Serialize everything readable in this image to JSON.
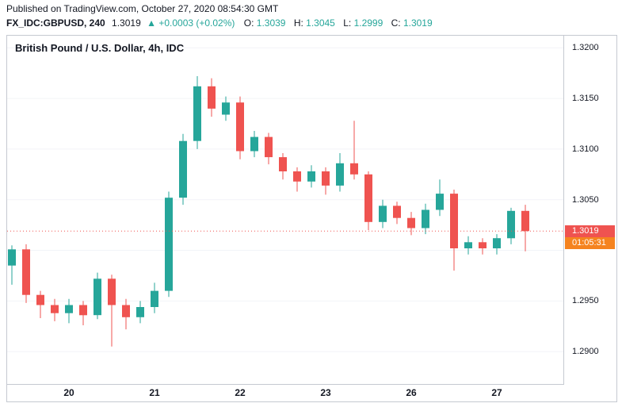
{
  "header": {
    "published": "Published on TradingView.com, October 27, 2020 08:54:30 GMT",
    "symbol": "FX_IDC:GBPUSD, 240",
    "last_price": "1.3019",
    "change_arrow": "▲",
    "change": "+0.0003 (+0.02%)",
    "ohlc": [
      {
        "label": "O:",
        "value": "1.3039"
      },
      {
        "label": "H:",
        "value": "1.3045"
      },
      {
        "label": "L:",
        "value": "1.2999"
      },
      {
        "label": "C:",
        "value": "1.3019"
      }
    ]
  },
  "chart": {
    "title": "British Pound / U.S. Dollar, 4h, IDC",
    "price_tag": "1.3019",
    "countdown_tag": "01:05:31"
  },
  "colors": {
    "up": "#26a69a",
    "down": "#ef5350",
    "change_text": "#26a69a",
    "ohlc_value_text": "#26a69a",
    "price_line": "#ef5350",
    "price_tag_bg": "#ef5350",
    "countdown_bg": "#f5831f",
    "grid": "#f2f4f8",
    "border": "#c5c9d1",
    "text": "#131722"
  },
  "chart_data": {
    "type": "candlestick",
    "title": "British Pound / U.S. Dollar, 4h, IDC",
    "symbol": "FX_IDC:GBPUSD",
    "interval": "240",
    "ylim": [
      1.2868,
      1.3212
    ],
    "y_grid": [
      1.32,
      1.315,
      1.31,
      1.305,
      1.3,
      1.295,
      1.29
    ],
    "y_ticks": [
      {
        "label": "1.3200",
        "value": 1.32
      },
      {
        "label": "1.3150",
        "value": 1.315
      },
      {
        "label": "1.3100",
        "value": 1.31
      },
      {
        "label": "1.3050",
        "value": 1.305
      },
      {
        "label": "1.2950",
        "value": 1.295
      },
      {
        "label": "1.2900",
        "value": 1.29
      }
    ],
    "x_ticks": [
      {
        "label": "20",
        "index": 4
      },
      {
        "label": "21",
        "index": 10
      },
      {
        "label": "22",
        "index": 16
      },
      {
        "label": "23",
        "index": 22
      },
      {
        "label": "26",
        "index": 28
      },
      {
        "label": "27",
        "index": 34
      }
    ],
    "last_price": 1.3019,
    "candles": [
      {
        "o": 1.2985,
        "h": 1.3005,
        "l": 1.2966,
        "c": 1.3001
      },
      {
        "o": 1.3001,
        "h": 1.3006,
        "l": 1.2948,
        "c": 1.2956
      },
      {
        "o": 1.2956,
        "h": 1.296,
        "l": 1.2933,
        "c": 1.2946
      },
      {
        "o": 1.2946,
        "h": 1.2952,
        "l": 1.293,
        "c": 1.2938
      },
      {
        "o": 1.2938,
        "h": 1.2952,
        "l": 1.2928,
        "c": 1.2946
      },
      {
        "o": 1.2946,
        "h": 1.295,
        "l": 1.2926,
        "c": 1.2936
      },
      {
        "o": 1.2936,
        "h": 1.2978,
        "l": 1.2932,
        "c": 1.2972
      },
      {
        "o": 1.2972,
        "h": 1.2976,
        "l": 1.2905,
        "c": 1.2946
      },
      {
        "o": 1.2946,
        "h": 1.2952,
        "l": 1.2922,
        "c": 1.2934
      },
      {
        "o": 1.2934,
        "h": 1.295,
        "l": 1.2928,
        "c": 1.2944
      },
      {
        "o": 1.2944,
        "h": 1.2968,
        "l": 1.2938,
        "c": 1.296
      },
      {
        "o": 1.296,
        "h": 1.3058,
        "l": 1.2954,
        "c": 1.3052
      },
      {
        "o": 1.3052,
        "h": 1.3115,
        "l": 1.3045,
        "c": 1.3108
      },
      {
        "o": 1.3108,
        "h": 1.3172,
        "l": 1.31,
        "c": 1.3162
      },
      {
        "o": 1.3162,
        "h": 1.317,
        "l": 1.3132,
        "c": 1.314
      },
      {
        "o": 1.3134,
        "h": 1.3152,
        "l": 1.3128,
        "c": 1.3146
      },
      {
        "o": 1.3146,
        "h": 1.3152,
        "l": 1.309,
        "c": 1.3098
      },
      {
        "o": 1.3098,
        "h": 1.3118,
        "l": 1.3092,
        "c": 1.3112
      },
      {
        "o": 1.3112,
        "h": 1.3116,
        "l": 1.3085,
        "c": 1.3092
      },
      {
        "o": 1.3092,
        "h": 1.3096,
        "l": 1.307,
        "c": 1.3078
      },
      {
        "o": 1.3078,
        "h": 1.3082,
        "l": 1.3058,
        "c": 1.3068
      },
      {
        "o": 1.3068,
        "h": 1.3084,
        "l": 1.3062,
        "c": 1.3078
      },
      {
        "o": 1.3078,
        "h": 1.3082,
        "l": 1.3055,
        "c": 1.3064
      },
      {
        "o": 1.3064,
        "h": 1.3096,
        "l": 1.3058,
        "c": 1.3086
      },
      {
        "o": 1.3086,
        "h": 1.3128,
        "l": 1.307,
        "c": 1.3075
      },
      {
        "o": 1.3075,
        "h": 1.3078,
        "l": 1.302,
        "c": 1.3028
      },
      {
        "o": 1.3028,
        "h": 1.305,
        "l": 1.3022,
        "c": 1.3044
      },
      {
        "o": 1.3044,
        "h": 1.3048,
        "l": 1.3026,
        "c": 1.3032
      },
      {
        "o": 1.3032,
        "h": 1.3038,
        "l": 1.3015,
        "c": 1.3022
      },
      {
        "o": 1.3022,
        "h": 1.3046,
        "l": 1.3016,
        "c": 1.304
      },
      {
        "o": 1.304,
        "h": 1.307,
        "l": 1.3034,
        "c": 1.3056
      },
      {
        "o": 1.3056,
        "h": 1.306,
        "l": 1.298,
        "c": 1.3002
      },
      {
        "o": 1.3002,
        "h": 1.3014,
        "l": 1.2996,
        "c": 1.3008
      },
      {
        "o": 1.3008,
        "h": 1.3012,
        "l": 1.2996,
        "c": 1.3002
      },
      {
        "o": 1.3002,
        "h": 1.3016,
        "l": 1.2996,
        "c": 1.3012
      },
      {
        "o": 1.3012,
        "h": 1.3042,
        "l": 1.3006,
        "c": 1.3039
      },
      {
        "o": 1.3039,
        "h": 1.3045,
        "l": 1.2999,
        "c": 1.3019
      }
    ]
  }
}
